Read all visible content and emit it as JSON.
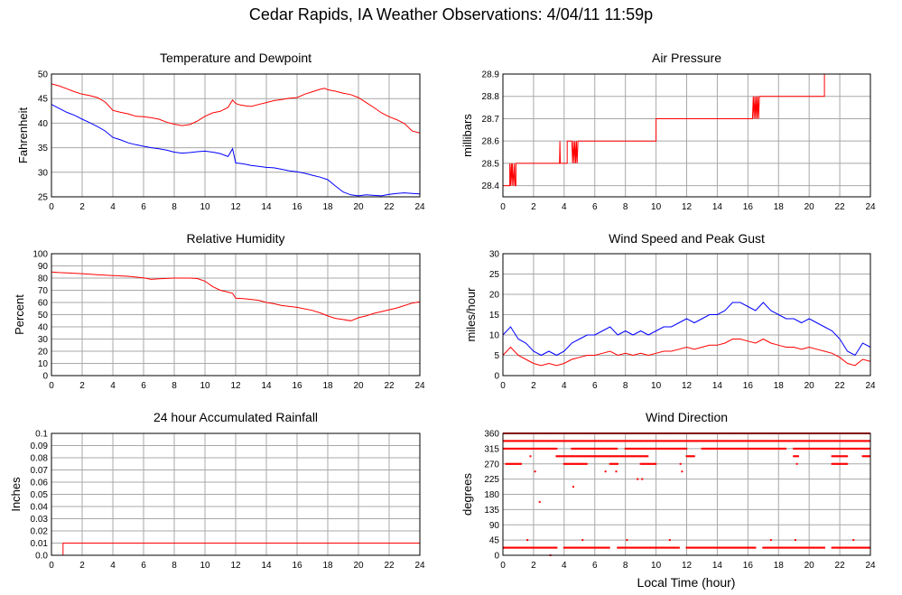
{
  "title": "Cedar Rapids, IA Weather Observations: 4/04/11 11:59p",
  "x_axis_title": "Local Time (hour)",
  "colors": {
    "red": "#ff0000",
    "blue": "#0000ff",
    "grid": "#a8a8a8"
  },
  "chart_data": [
    {
      "id": "temperature",
      "type": "line",
      "title": "Temperature and Dewpoint",
      "ylabel": "Fahrenheit",
      "xlim": [
        0,
        24
      ],
      "ylim": [
        25,
        50
      ],
      "xticks": [
        0,
        2,
        4,
        6,
        8,
        10,
        12,
        14,
        16,
        18,
        20,
        22,
        24
      ],
      "yticks": [
        "25",
        "30",
        "35",
        "40",
        "45",
        "50"
      ],
      "grid": true,
      "series": [
        {
          "color": "#ff0000",
          "x": [
            0,
            0.5,
            1,
            1.5,
            2,
            2.5,
            3,
            3.5,
            4,
            4.5,
            5,
            5.5,
            6,
            6.5,
            7,
            7.5,
            8,
            8.5,
            9,
            9.5,
            10,
            10.5,
            11,
            11.5,
            11.8,
            12,
            12.3,
            12.7,
            13,
            13.5,
            14,
            14.5,
            15,
            15.5,
            16,
            16.5,
            17,
            17.5,
            17.8,
            18,
            18.5,
            19,
            19.5,
            20,
            20.5,
            21,
            21.5,
            22,
            22.5,
            23,
            23.5,
            24
          ],
          "y": [
            48,
            47.6,
            47,
            46.4,
            45.9,
            45.6,
            45.2,
            44.3,
            42.6,
            42.2,
            41.9,
            41.4,
            41.3,
            41.1,
            40.8,
            40.2,
            39.8,
            39.5,
            39.7,
            40.4,
            41.4,
            42.1,
            42.4,
            43.2,
            44.7,
            44.0,
            43.7,
            43.5,
            43.4,
            43.8,
            44.2,
            44.6,
            44.8,
            45.1,
            45.2,
            45.9,
            46.4,
            46.9,
            47.1,
            46.8,
            46.5,
            46.1,
            45.8,
            45.2,
            44.2,
            43.2,
            42.1,
            41.3,
            40.7,
            39.9,
            38.4,
            38.0
          ]
        },
        {
          "color": "#0000ff",
          "x": [
            0,
            0.5,
            1,
            1.5,
            2,
            2.5,
            3,
            3.5,
            4,
            4.5,
            5,
            5.5,
            6,
            6.5,
            7,
            7.5,
            8,
            8.5,
            9,
            9.5,
            10,
            10.5,
            11,
            11.5,
            11.8,
            12,
            12.3,
            12.7,
            13,
            13.5,
            14,
            14.5,
            15,
            15.5,
            16,
            16.5,
            17,
            17.5,
            18,
            18.5,
            19,
            19.5,
            20,
            20.5,
            21,
            21.5,
            22,
            22.5,
            23,
            23.5,
            24
          ],
          "y": [
            43.8,
            43.0,
            42.2,
            41.6,
            40.8,
            40.1,
            39.3,
            38.4,
            37.1,
            36.6,
            36.0,
            35.6,
            35.3,
            35.0,
            34.8,
            34.5,
            34.1,
            33.9,
            34.0,
            34.2,
            34.3,
            34.1,
            33.8,
            33.2,
            34.8,
            31.9,
            31.8,
            31.6,
            31.4,
            31.2,
            31.0,
            30.9,
            30.6,
            30.3,
            30.1,
            29.8,
            29.4,
            29.0,
            28.5,
            27.2,
            26.0,
            25.4,
            25.2,
            25.4,
            25.3,
            25.2,
            25.5,
            25.7,
            25.8,
            25.7,
            25.6
          ]
        }
      ]
    },
    {
      "id": "pressure",
      "type": "line",
      "title": "Air Pressure",
      "ylabel": "millibars",
      "xlim": [
        0,
        24
      ],
      "ylim": [
        28.35,
        28.9
      ],
      "xticks": [
        0,
        2,
        4,
        6,
        8,
        10,
        12,
        14,
        16,
        18,
        20,
        22,
        24
      ],
      "yticks": [
        "28.4",
        "28.5",
        "28.6",
        "28.7",
        "28.8",
        "28.9"
      ],
      "grid": true,
      "series": [
        {
          "color": "#ff0000",
          "x": [
            0,
            0.45,
            0.45,
            0.5,
            0.55,
            0.6,
            0.62,
            0.7,
            0.75,
            0.8,
            0.85,
            0.85,
            3.7,
            3.72,
            3.75,
            3.75,
            4.2,
            4.2,
            4.5,
            4.55,
            4.6,
            4.65,
            4.7,
            4.75,
            4.8,
            4.85,
            4.9,
            4.9,
            10,
            10,
            16.3,
            16.35,
            16.4,
            16.45,
            16.5,
            16.55,
            16.6,
            16.65,
            16.7,
            16.75,
            16.8,
            16.8,
            21,
            21,
            24
          ],
          "y": [
            28.4,
            28.4,
            28.5,
            28.4,
            28.5,
            28.4,
            28.5,
            28.4,
            28.5,
            28.4,
            28.4,
            28.5,
            28.5,
            28.6,
            28.5,
            28.5,
            28.5,
            28.6,
            28.6,
            28.5,
            28.6,
            28.5,
            28.6,
            28.5,
            28.6,
            28.5,
            28.6,
            28.6,
            28.6,
            28.7,
            28.7,
            28.8,
            28.7,
            28.8,
            28.7,
            28.8,
            28.7,
            28.8,
            28.7,
            28.8,
            28.8,
            28.8,
            28.8,
            28.9,
            28.9
          ]
        }
      ]
    },
    {
      "id": "humidity",
      "type": "line",
      "title": "Relative Humidity",
      "ylabel": "Percent",
      "xlim": [
        0,
        24
      ],
      "ylim": [
        0,
        100
      ],
      "xticks": [
        0,
        2,
        4,
        6,
        8,
        10,
        12,
        14,
        16,
        18,
        20,
        22,
        24
      ],
      "yticks": [
        "0",
        "10",
        "20",
        "30",
        "40",
        "50",
        "60",
        "70",
        "80",
        "90",
        "100"
      ],
      "grid": true,
      "series": [
        {
          "color": "#ff0000",
          "x": [
            0,
            0.5,
            1,
            2,
            3,
            4,
            5,
            6,
            6.5,
            7,
            8,
            9,
            9.5,
            10,
            10.5,
            11,
            11.5,
            11.8,
            12,
            12.5,
            13,
            13.5,
            14,
            14.5,
            15,
            16,
            17,
            17.5,
            18,
            18.5,
            19,
            19.5,
            20,
            20.5,
            21,
            21.5,
            22,
            22.5,
            23,
            23.5,
            24
          ],
          "y": [
            85,
            84.5,
            84.2,
            83.6,
            82.8,
            82.1,
            81.5,
            80.2,
            79.0,
            79.4,
            80.0,
            80.0,
            79.6,
            77.5,
            73.0,
            70.0,
            68.5,
            67.5,
            63.5,
            63.2,
            62.5,
            61.8,
            60.0,
            59.0,
            57.5,
            56.0,
            53.5,
            51.5,
            49.0,
            47.0,
            46.0,
            45.0,
            47.5,
            49.0,
            51.0,
            52.5,
            54.0,
            55.5,
            57.5,
            59.5,
            60.5
          ]
        }
      ]
    },
    {
      "id": "wind",
      "type": "line",
      "title": "Wind Speed and Peak Gust",
      "ylabel": "miles/hour",
      "xlim": [
        0,
        24
      ],
      "ylim": [
        0,
        30
      ],
      "xticks": [
        0,
        2,
        4,
        6,
        8,
        10,
        12,
        14,
        16,
        18,
        20,
        22,
        24
      ],
      "yticks": [
        "0",
        "5",
        "10",
        "15",
        "20",
        "25",
        "30"
      ],
      "grid": true,
      "series": [
        {
          "color": "#0000ff",
          "x": [
            0,
            0.5,
            1,
            1.5,
            2,
            2.5,
            3,
            3.5,
            4,
            4.5,
            5,
            5.5,
            6,
            6.5,
            7,
            7.5,
            8,
            8.5,
            9,
            9.5,
            10,
            10.5,
            11,
            11.5,
            12,
            12.5,
            13,
            13.5,
            14,
            14.5,
            15,
            15.5,
            16,
            16.5,
            17,
            17.5,
            18,
            18.5,
            19,
            19.5,
            20,
            20.5,
            21,
            21.5,
            22,
            22.5,
            23,
            23.5,
            24
          ],
          "y": [
            10,
            12,
            9,
            8,
            6,
            5,
            6,
            5,
            6,
            8,
            9,
            10,
            10,
            11,
            12,
            10,
            11,
            10,
            11,
            10,
            11,
            12,
            12,
            13,
            14,
            13,
            14,
            15,
            15,
            16,
            18,
            18,
            17,
            16,
            18,
            16,
            15,
            14,
            14,
            13,
            14,
            13,
            12,
            11,
            9,
            6,
            5,
            8,
            7
          ]
        },
        {
          "color": "#ff0000",
          "x": [
            0,
            0.5,
            1,
            1.5,
            2,
            2.5,
            3,
            3.5,
            4,
            4.5,
            5,
            5.5,
            6,
            6.5,
            7,
            7.5,
            8,
            8.5,
            9,
            9.5,
            10,
            10.5,
            11,
            11.5,
            12,
            12.5,
            13,
            13.5,
            14,
            14.5,
            15,
            15.5,
            16,
            16.5,
            17,
            17.5,
            18,
            18.5,
            19,
            19.5,
            20,
            20.5,
            21,
            21.5,
            22,
            22.5,
            23,
            23.5,
            24
          ],
          "y": [
            5,
            7,
            5,
            4,
            3,
            2.5,
            3,
            2.5,
            3,
            4,
            4.5,
            5,
            5,
            5.5,
            6,
            5,
            5.5,
            5,
            5.5,
            5,
            5.5,
            6,
            6,
            6.5,
            7,
            6.5,
            7,
            7.5,
            7.5,
            8,
            9,
            9,
            8.5,
            8,
            9,
            8,
            7.5,
            7,
            7,
            6.5,
            7,
            6.5,
            6,
            5.5,
            4.5,
            3,
            2.5,
            4,
            3.5
          ]
        }
      ]
    },
    {
      "id": "rain",
      "type": "line",
      "title": "24 hour Accumulated Rainfall",
      "ylabel": "Inches",
      "xlim": [
        0,
        24
      ],
      "ylim": [
        0,
        0.1
      ],
      "xticks": [
        0,
        2,
        4,
        6,
        8,
        10,
        12,
        14,
        16,
        18,
        20,
        22,
        24
      ],
      "yticks": [
        "0.0",
        "0.01",
        "0.02",
        "0.03",
        "0.04",
        "0.05",
        "0.06",
        "0.07",
        "0.08",
        "0.09",
        "0.1"
      ],
      "grid": true,
      "series": [
        {
          "color": "#ff0000",
          "x": [
            0,
            0.75,
            0.75,
            24
          ],
          "y": [
            0,
            0,
            0.01,
            0.01
          ]
        }
      ]
    },
    {
      "id": "direction",
      "type": "scatter",
      "title": "Wind Direction",
      "ylabel": "degrees",
      "xlabel": "Local Time (hour)",
      "xlim": [
        0,
        24
      ],
      "ylim": [
        0,
        360
      ],
      "xticks": [
        0,
        2,
        4,
        6,
        8,
        10,
        12,
        14,
        16,
        18,
        20,
        22,
        24
      ],
      "yticks": [
        "0",
        "45",
        "90",
        "135",
        "180",
        "225",
        "270",
        "315",
        "360"
      ],
      "grid": true,
      "bands": [
        {
          "y": 360,
          "ranges": [
            [
              0,
              24
            ]
          ]
        },
        {
          "y": 337.5,
          "ranges": [
            [
              0,
              24
            ]
          ]
        },
        {
          "y": 315,
          "ranges": [
            [
              0,
              3.5
            ],
            [
              4.5,
              7.5
            ],
            [
              8,
              12
            ],
            [
              13,
              18.5
            ],
            [
              19,
              24
            ]
          ]
        },
        {
          "y": 292.5,
          "ranges": [
            [
              3.5,
              9.5
            ],
            [
              12,
              12.5
            ],
            [
              19,
              19.3
            ],
            [
              21.5,
              22.5
            ],
            [
              23.5,
              24
            ]
          ]
        },
        {
          "y": 270,
          "ranges": [
            [
              0.2,
              1.2
            ],
            [
              4,
              5.5
            ],
            [
              7,
              7.5
            ],
            [
              9,
              10
            ],
            [
              21.5,
              22.5
            ]
          ]
        },
        {
          "y": 22.5,
          "ranges": [
            [
              0,
              3.5
            ],
            [
              4,
              7
            ],
            [
              7.5,
              11.5
            ],
            [
              12,
              16.5
            ],
            [
              17,
              21
            ],
            [
              21.5,
              24
            ]
          ]
        }
      ],
      "points": [
        {
          "x": 1.8,
          "y": 292.5
        },
        {
          "x": 2.1,
          "y": 247.5
        },
        {
          "x": 2.4,
          "y": 157.5
        },
        {
          "x": 4.6,
          "y": 202.5
        },
        {
          "x": 6.7,
          "y": 247.5
        },
        {
          "x": 7.4,
          "y": 247.5
        },
        {
          "x": 8.8,
          "y": 225
        },
        {
          "x": 9.1,
          "y": 225
        },
        {
          "x": 11.6,
          "y": 270
        },
        {
          "x": 11.7,
          "y": 247.5
        },
        {
          "x": 19.2,
          "y": 270
        },
        {
          "x": 3.1,
          "y": 0
        },
        {
          "x": 1.6,
          "y": 45
        },
        {
          "x": 5.2,
          "y": 45
        },
        {
          "x": 8.1,
          "y": 45
        },
        {
          "x": 10.9,
          "y": 45
        },
        {
          "x": 17.5,
          "y": 45
        },
        {
          "x": 19.1,
          "y": 45
        },
        {
          "x": 22.9,
          "y": 45
        }
      ]
    }
  ]
}
